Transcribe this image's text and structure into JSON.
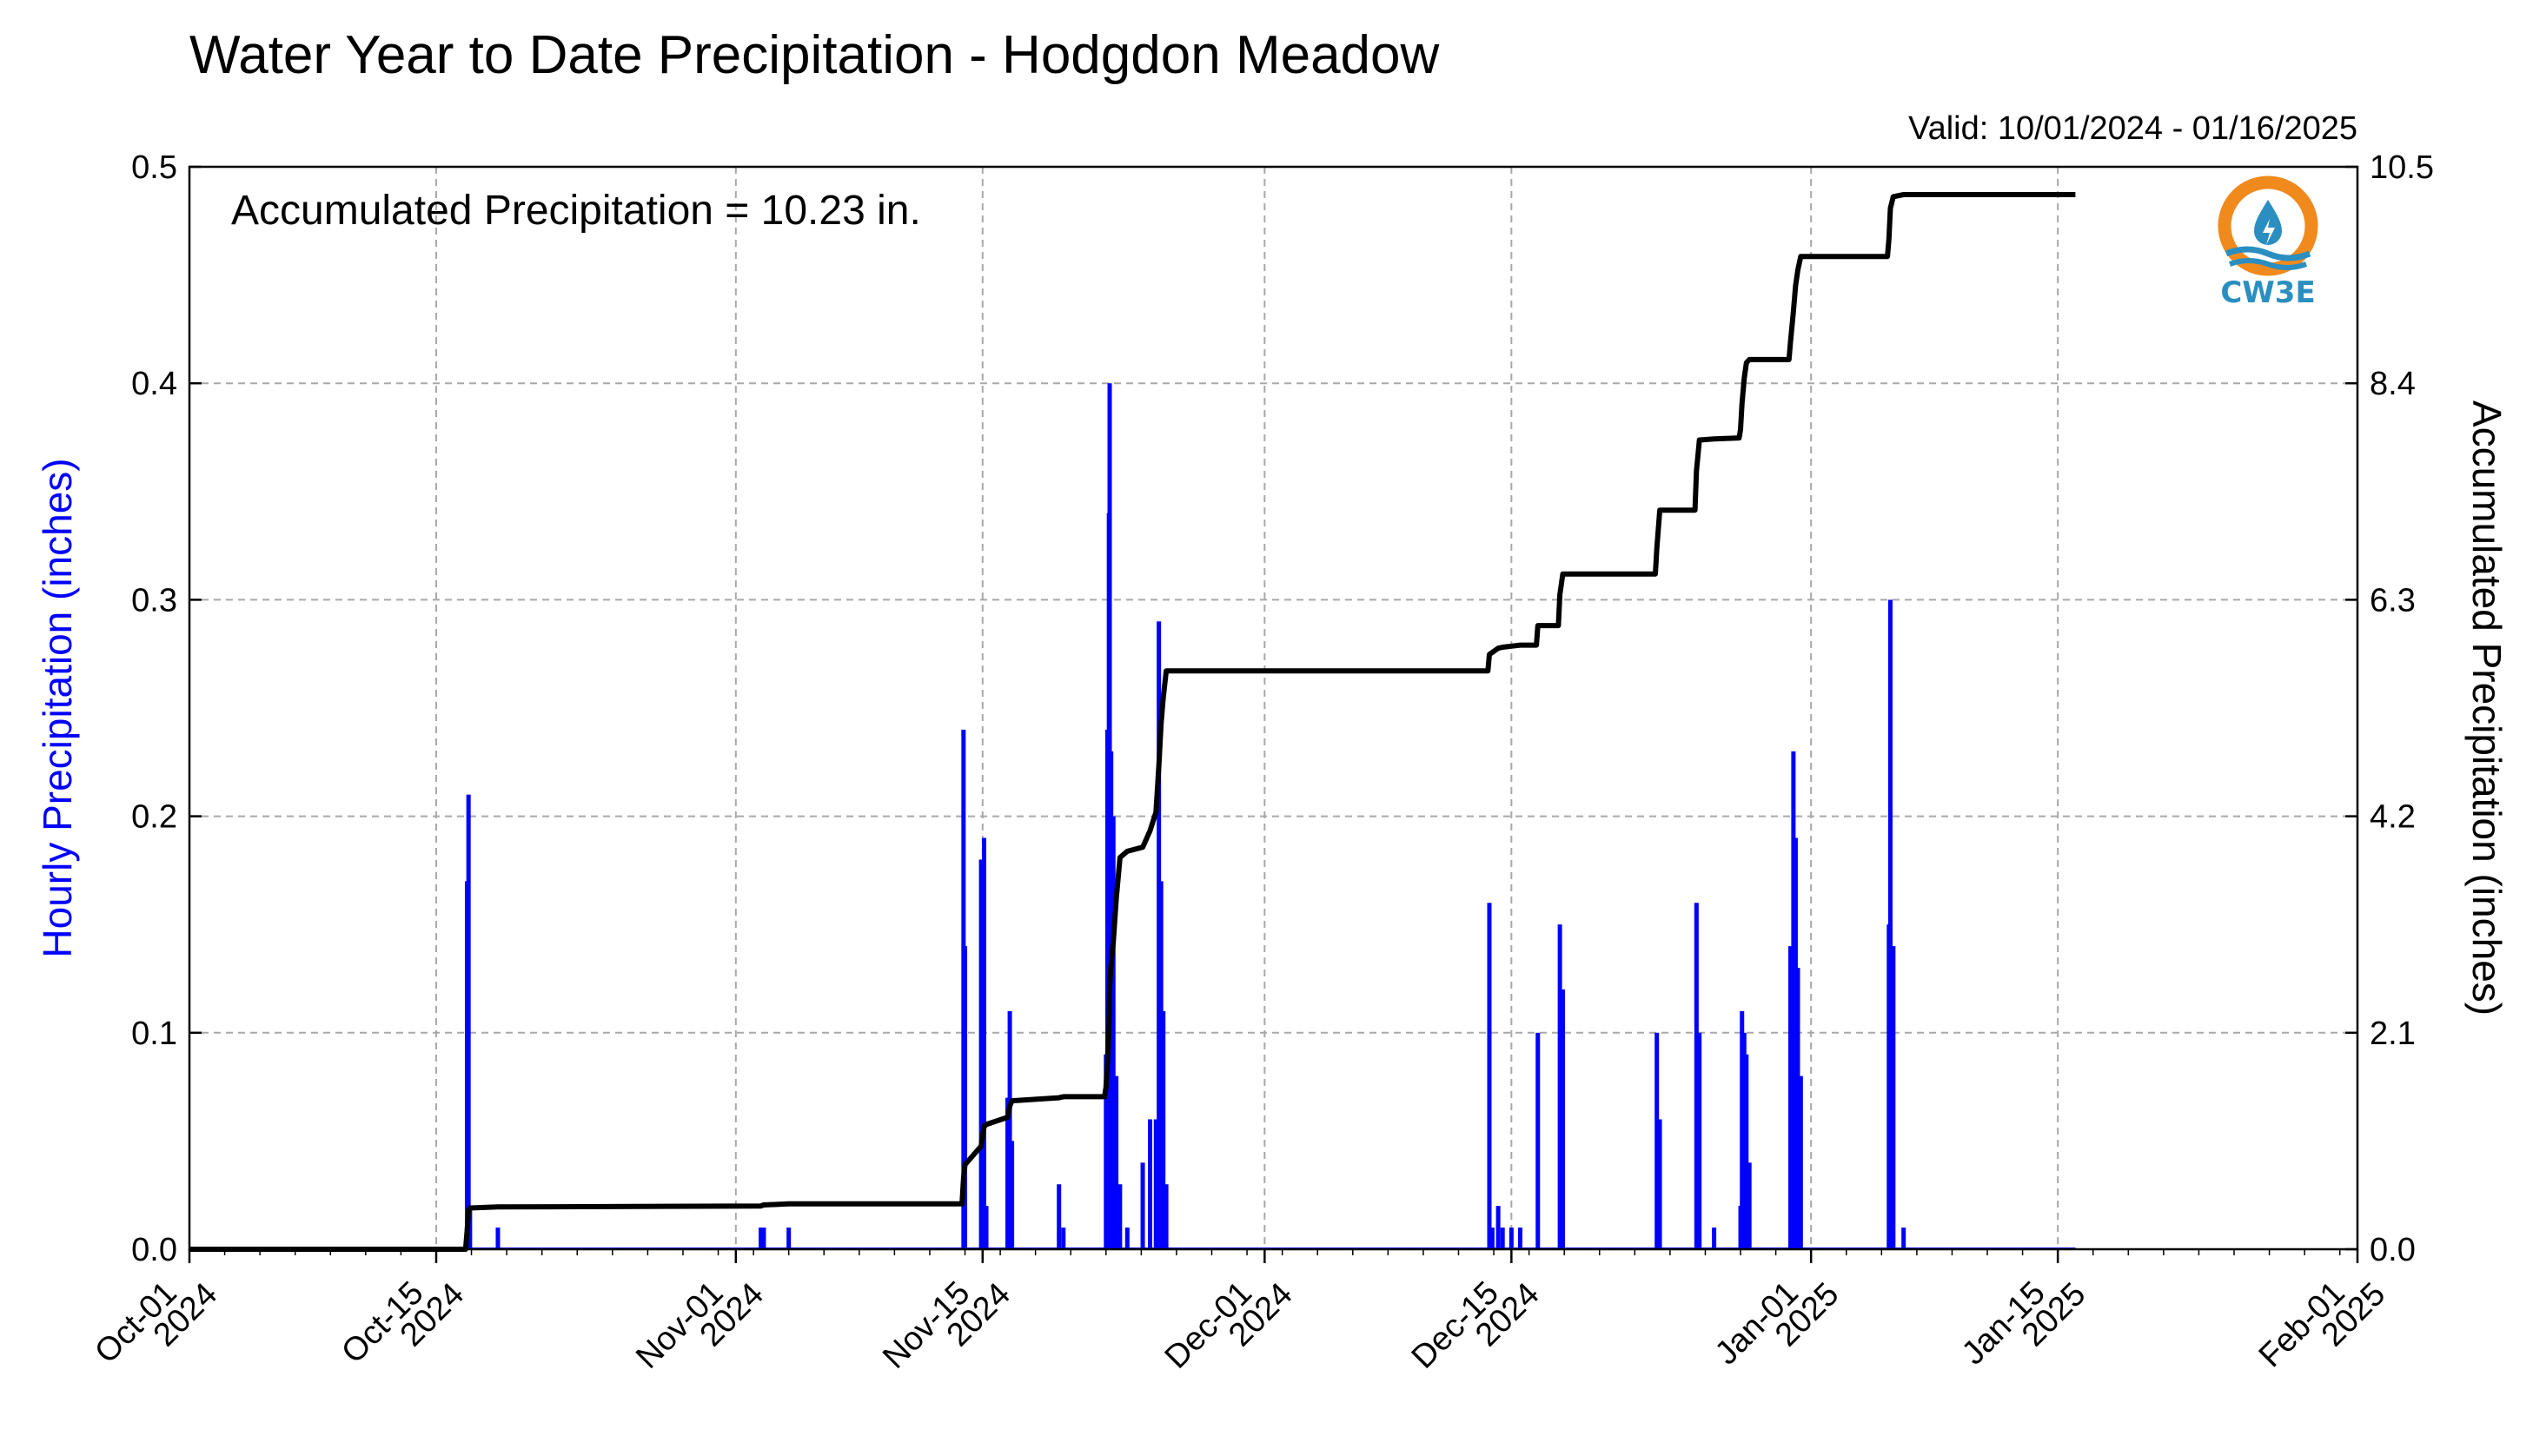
{
  "title": "Water Year to Date Precipitation - Hodgdon Meadow",
  "valid_text": "Valid: 10/01/2024 - 01/16/2025",
  "annotation": "Accumulated Precipitation = 10.23 in.",
  "logo": {
    "text": "CW3E",
    "icon": "water-drop-sun-logo-icon",
    "color_orange": "#f08a1d",
    "color_blue": "#2b8ec1"
  },
  "colors": {
    "hourly": "#0000ff",
    "accumulated": "#000000",
    "grid": "#a8a8a8"
  },
  "chart_data": {
    "type": "bar",
    "grid": true,
    "x_start": "2024-10-01",
    "x_end": "2025-02-01",
    "x_ticks": [
      {
        "date": "2024-10-01",
        "line1": "Oct-01",
        "line2": "2024"
      },
      {
        "date": "2024-10-15",
        "line1": "Oct-15",
        "line2": "2024"
      },
      {
        "date": "2024-11-01",
        "line1": "Nov-01",
        "line2": "2024"
      },
      {
        "date": "2024-11-15",
        "line1": "Nov-15",
        "line2": "2024"
      },
      {
        "date": "2024-12-01",
        "line1": "Dec-01",
        "line2": "2024"
      },
      {
        "date": "2024-12-15",
        "line1": "Dec-15",
        "line2": "2024"
      },
      {
        "date": "2025-01-01",
        "line1": "Jan-01",
        "line2": "2025"
      },
      {
        "date": "2025-01-15",
        "line1": "Jan-15",
        "line2": "2025"
      },
      {
        "date": "2025-02-01",
        "line1": "Feb-01",
        "line2": "2025"
      }
    ],
    "y_left": {
      "label": "Hourly Precipitation (inches)",
      "ylim": [
        0,
        0.5
      ],
      "ticks": [
        "0.0",
        "0.1",
        "0.2",
        "0.3",
        "0.4",
        "0.5"
      ]
    },
    "y_right": {
      "label": "Accumulated Precipitation (inches)",
      "ylim": [
        0,
        10.5
      ],
      "ticks": [
        "0.0",
        "2.1",
        "4.2",
        "6.3",
        "8.4",
        "10.5"
      ]
    },
    "series": [
      {
        "name": "Hourly Precipitation (inches)",
        "type": "bar",
        "color": "#0000ff",
        "points": [
          [
            "2024-10-16 18:00",
            0.17
          ],
          [
            "2024-10-16 20:00",
            0.21
          ],
          [
            "2024-10-16 22:00",
            0.02
          ],
          [
            "2024-10-18 12:00",
            0.01
          ],
          [
            "2024-11-02 10:00",
            0.01
          ],
          [
            "2024-11-02 14:00",
            0.01
          ],
          [
            "2024-11-04 00:00",
            0.01
          ],
          [
            "2024-11-13 22:00",
            0.24
          ],
          [
            "2024-11-14 00:00",
            0.14
          ],
          [
            "2024-11-14 22:00",
            0.18
          ],
          [
            "2024-11-15 02:00",
            0.19
          ],
          [
            "2024-11-15 05:00",
            0.02
          ],
          [
            "2024-11-16 10:00",
            0.07
          ],
          [
            "2024-11-16 13:00",
            0.11
          ],
          [
            "2024-11-16 16:00",
            0.05
          ],
          [
            "2024-11-19 08:00",
            0.03
          ],
          [
            "2024-11-19 14:00",
            0.01
          ],
          [
            "2024-11-22 00:00",
            0.09
          ],
          [
            "2024-11-22 02:00",
            0.24
          ],
          [
            "2024-11-22 04:00",
            0.34
          ],
          [
            "2024-11-22 05:00",
            0.4
          ],
          [
            "2024-11-22 07:00",
            0.23
          ],
          [
            "2024-11-22 10:00",
            0.2
          ],
          [
            "2024-11-22 14:00",
            0.08
          ],
          [
            "2024-11-22 19:00",
            0.03
          ],
          [
            "2024-11-23 05:00",
            0.01
          ],
          [
            "2024-11-24 02:00",
            0.04
          ],
          [
            "2024-11-24 12:00",
            0.06
          ],
          [
            "2024-11-24 20:00",
            0.06
          ],
          [
            "2024-11-25 00:00",
            0.29
          ],
          [
            "2024-11-25 03:00",
            0.17
          ],
          [
            "2024-11-25 06:00",
            0.11
          ],
          [
            "2024-11-25 10:00",
            0.03
          ],
          [
            "2024-12-13 18:00",
            0.16
          ],
          [
            "2024-12-13 22:00",
            0.01
          ],
          [
            "2024-12-14 06:00",
            0.02
          ],
          [
            "2024-12-14 12:00",
            0.01
          ],
          [
            "2024-12-15 00:00",
            0.01
          ],
          [
            "2024-12-15 12:00",
            0.01
          ],
          [
            "2024-12-16 12:00",
            0.1
          ],
          [
            "2024-12-17 18:00",
            0.15
          ],
          [
            "2024-12-17 22:00",
            0.12
          ],
          [
            "2024-12-23 06:00",
            0.1
          ],
          [
            "2024-12-23 10:00",
            0.06
          ],
          [
            "2024-12-25 12:00",
            0.16
          ],
          [
            "2024-12-25 16:00",
            0.1
          ],
          [
            "2024-12-26 12:00",
            0.01
          ],
          [
            "2024-12-28 00:00",
            0.02
          ],
          [
            "2024-12-28 02:00",
            0.11
          ],
          [
            "2024-12-28 05:00",
            0.1
          ],
          [
            "2024-12-28 08:00",
            0.09
          ],
          [
            "2024-12-28 12:00",
            0.04
          ],
          [
            "2024-12-30 20:00",
            0.14
          ],
          [
            "2024-12-31 00:00",
            0.23
          ],
          [
            "2024-12-31 03:00",
            0.19
          ],
          [
            "2024-12-31 06:00",
            0.13
          ],
          [
            "2024-12-31 10:00",
            0.08
          ],
          [
            "2025-01-05 10:00",
            0.15
          ],
          [
            "2025-01-05 12:00",
            0.3
          ],
          [
            "2025-01-05 16:00",
            0.14
          ],
          [
            "2025-01-06 06:00",
            0.01
          ]
        ]
      },
      {
        "name": "Accumulated Precipitation (inches)",
        "type": "line",
        "color": "#000000",
        "points": [
          [
            "2024-10-01 00:00",
            0.0
          ],
          [
            "2024-10-16 16:00",
            0.0
          ],
          [
            "2024-10-16 18:00",
            0.17
          ],
          [
            "2024-10-16 20:00",
            0.38
          ],
          [
            "2024-10-16 22:00",
            0.4
          ],
          [
            "2024-10-18 12:00",
            0.41
          ],
          [
            "2024-11-02 10:00",
            0.42
          ],
          [
            "2024-11-02 14:00",
            0.43
          ],
          [
            "2024-11-04 00:00",
            0.44
          ],
          [
            "2024-11-13 20:00",
            0.44
          ],
          [
            "2024-11-13 22:00",
            0.68
          ],
          [
            "2024-11-14 00:00",
            0.82
          ],
          [
            "2024-11-14 22:00",
            1.0
          ],
          [
            "2024-11-15 02:00",
            1.19
          ],
          [
            "2024-11-15 05:00",
            1.21
          ],
          [
            "2024-11-16 10:00",
            1.28
          ],
          [
            "2024-11-16 13:00",
            1.39
          ],
          [
            "2024-11-16 16:00",
            1.44
          ],
          [
            "2024-11-19 08:00",
            1.47
          ],
          [
            "2024-11-19 14:00",
            1.48
          ],
          [
            "2024-11-21 22:00",
            1.48
          ],
          [
            "2024-11-22 00:00",
            1.57
          ],
          [
            "2024-11-22 02:00",
            1.81
          ],
          [
            "2024-11-22 04:00",
            2.15
          ],
          [
            "2024-11-22 05:00",
            2.55
          ],
          [
            "2024-11-22 07:00",
            2.78
          ],
          [
            "2024-11-22 10:00",
            2.98
          ],
          [
            "2024-11-22 14:00",
            3.4
          ],
          [
            "2024-11-22 19:00",
            3.8
          ],
          [
            "2024-11-23 05:00",
            3.86
          ],
          [
            "2024-11-24 02:00",
            3.9
          ],
          [
            "2024-11-24 12:00",
            4.06
          ],
          [
            "2024-11-24 20:00",
            4.24
          ],
          [
            "2024-11-25 00:00",
            4.7
          ],
          [
            "2024-11-25 03:00",
            5.1
          ],
          [
            "2024-11-25 06:00",
            5.35
          ],
          [
            "2024-11-25 10:00",
            5.61
          ],
          [
            "2024-12-13 16:00",
            5.61
          ],
          [
            "2024-12-13 18:00",
            5.77
          ],
          [
            "2024-12-13 22:00",
            5.79
          ],
          [
            "2024-12-14 06:00",
            5.83
          ],
          [
            "2024-12-14 12:00",
            5.84
          ],
          [
            "2024-12-15 00:00",
            5.85
          ],
          [
            "2024-12-15 12:00",
            5.86
          ],
          [
            "2024-12-16 10:00",
            5.86
          ],
          [
            "2024-12-16 12:00",
            6.05
          ],
          [
            "2024-12-17 16:00",
            6.05
          ],
          [
            "2024-12-17 18:00",
            6.35
          ],
          [
            "2024-12-17 22:00",
            6.55
          ],
          [
            "2024-12-23 04:00",
            6.55
          ],
          [
            "2024-12-23 06:00",
            6.8
          ],
          [
            "2024-12-23 10:00",
            7.17
          ],
          [
            "2024-12-25 10:00",
            7.17
          ],
          [
            "2024-12-25 12:00",
            7.55
          ],
          [
            "2024-12-25 16:00",
            7.85
          ],
          [
            "2024-12-26 12:00",
            7.86
          ],
          [
            "2024-12-27 22:00",
            7.87
          ],
          [
            "2024-12-28 00:00",
            7.95
          ],
          [
            "2024-12-28 02:00",
            8.2
          ],
          [
            "2024-12-28 05:00",
            8.45
          ],
          [
            "2024-12-28 08:00",
            8.6
          ],
          [
            "2024-12-28 12:00",
            8.63
          ],
          [
            "2024-12-30 18:00",
            8.63
          ],
          [
            "2024-12-30 20:00",
            8.8
          ],
          [
            "2024-12-31 00:00",
            9.1
          ],
          [
            "2024-12-31 03:00",
            9.35
          ],
          [
            "2024-12-31 06:00",
            9.5
          ],
          [
            "2024-12-31 10:00",
            9.63
          ],
          [
            "2025-01-05 08:00",
            9.63
          ],
          [
            "2025-01-05 10:00",
            9.8
          ],
          [
            "2025-01-05 12:00",
            10.1
          ],
          [
            "2025-01-05 16:00",
            10.21
          ],
          [
            "2025-01-06 06:00",
            10.23
          ],
          [
            "2025-01-16 00:00",
            10.23
          ]
        ]
      }
    ]
  }
}
